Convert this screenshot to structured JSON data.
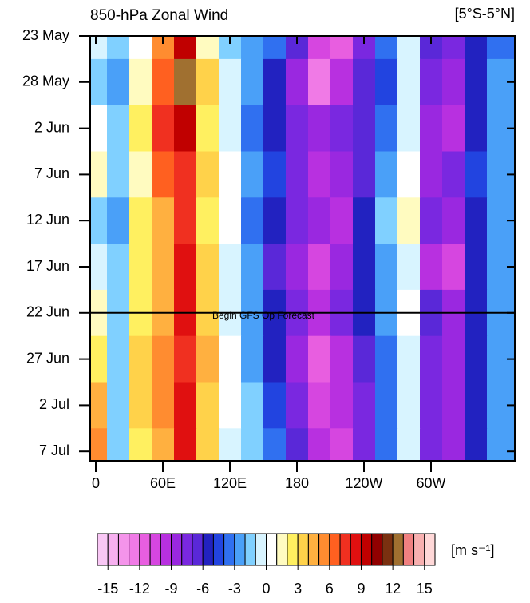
{
  "chart_data": {
    "type": "heatmap",
    "title": "850-hPa Zonal Wind",
    "subtitle": "[5°S-5°N]",
    "x": [
      0,
      20,
      40,
      60,
      80,
      100,
      120,
      140,
      160,
      180,
      200,
      220,
      240,
      260,
      280,
      300,
      320,
      340,
      360
    ],
    "xlim": [
      -5,
      375
    ],
    "xticks": [
      0,
      {
        "value": 60,
        "label": "60E"
      },
      {
        "value": 120,
        "label": "120E"
      },
      180,
      {
        "value": 240,
        "label": "120W"
      },
      {
        "value": 300,
        "label": "60W"
      }
    ],
    "categories": [
      "23 May",
      "28 May",
      "2 Jun",
      "7 Jun",
      "12 Jun",
      "17 Jun",
      "22 Jun",
      "27 Jun",
      "2 Jul",
      "7 Jul"
    ],
    "values": [
      [
        -1,
        -2,
        0,
        5,
        9,
        1,
        -2,
        -3,
        -4,
        -7,
        -11,
        -12,
        -8,
        -4,
        -1,
        -7,
        -8,
        -6,
        -4
      ],
      [
        -2,
        -3,
        1,
        6,
        12,
        3,
        -1,
        -3,
        -6,
        -9,
        -13,
        -10,
        -7,
        -5,
        -1,
        -8,
        -9,
        -6,
        -3
      ],
      [
        0,
        -2,
        2,
        7,
        9,
        2,
        -1,
        -4,
        -6,
        -8,
        -9,
        -8,
        -7,
        -4,
        -1,
        -9,
        -10,
        -6,
        -3
      ],
      [
        1,
        -2,
        1,
        6,
        7,
        3,
        0,
        -3,
        -5,
        -8,
        -10,
        -9,
        -7,
        -3,
        0,
        -9,
        -8,
        -5,
        -3
      ],
      [
        -2,
        -3,
        2,
        4,
        7,
        2,
        0,
        -4,
        -6,
        -8,
        -9,
        -10,
        -6,
        -2,
        1,
        -8,
        -9,
        -6,
        -3
      ],
      [
        -1,
        -2,
        2,
        4,
        8,
        3,
        -1,
        -3,
        -7,
        -9,
        -11,
        -9,
        -6,
        -3,
        -1,
        -10,
        -11,
        -6,
        -3
      ],
      [
        1,
        -2,
        2,
        4,
        8,
        3,
        -1,
        -3,
        -6,
        -8,
        -10,
        -8,
        -6,
        -3,
        0,
        -7,
        -9,
        -6,
        -3
      ],
      [
        2,
        -2,
        3,
        5,
        7,
        4,
        0,
        -3,
        -6,
        -9,
        -12,
        -10,
        -7,
        -4,
        -1,
        -8,
        -9,
        -6,
        -3
      ],
      [
        4,
        -2,
        3,
        5,
        8,
        3,
        0,
        -2,
        -5,
        -8,
        -11,
        -10,
        -8,
        -4,
        -1,
        -8,
        -9,
        -6,
        -3
      ],
      [
        5,
        -2,
        2,
        4,
        8,
        3,
        -1,
        -2,
        -4,
        -7,
        -10,
        -11,
        -8,
        -4,
        -1,
        -8,
        -9,
        -6,
        -3
      ]
    ],
    "annotation": {
      "text": "Begin GFS Op Forecast",
      "y": "22 Jun"
    },
    "colorbar": {
      "label": "[m s⁻¹]",
      "lim": [
        -16,
        16
      ],
      "ticks": [
        -15,
        -12,
        -9,
        -6,
        -3,
        0,
        3,
        6,
        9,
        12,
        15
      ],
      "colors": [
        "#f9c7f5",
        "#f7b0f0",
        "#f494ea",
        "#f07ae6",
        "#e85ee0",
        "#d646e0",
        "#b830e0",
        "#9a28e0",
        "#7a28e0",
        "#5a28d8",
        "#2222c0",
        "#2244e0",
        "#3070f0",
        "#4aa0f8",
        "#80d0ff",
        "#d8f4ff",
        "#ffffff",
        "#fffbc0",
        "#fff060",
        "#ffd24a",
        "#ffb040",
        "#ff8c30",
        "#ff6020",
        "#f03020",
        "#e01010",
        "#c00000",
        "#900000",
        "#7a3010",
        "#a07030",
        "#f08080",
        "#f8b0b0",
        "#ffd8d8"
      ]
    }
  }
}
